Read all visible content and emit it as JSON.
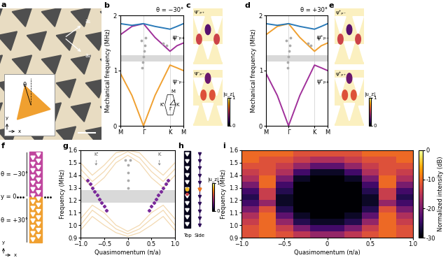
{
  "chart_data": [
    {
      "panel": "b",
      "type": "line",
      "title": "θ = −30°",
      "ylabel": "Mechanical frequency (MHz)",
      "x": [
        0,
        0.5,
        1,
        1.5,
        2.15,
        2.45,
        2.73
      ],
      "series": [
        {
          "color": "#f0a030",
          "values": [
            0.95,
            0.55,
            0,
            0.55,
            1.1,
            1.05,
            1.0
          ]
        },
        {
          "color": "#a0309a",
          "values": [
            1.65,
            1.8,
            1.85,
            1.6,
            1.35,
            1.45,
            1.5
          ]
        },
        {
          "color": "#2a7ab8",
          "values": [
            1.85,
            1.82,
            1.85,
            1.8,
            1.75,
            1.8,
            1.85
          ]
        }
      ],
      "points": {
        "color": "#aaaaaa",
        "x": [
          0.95,
          0.97,
          1.0,
          1.03,
          1.05,
          0.9,
          1.1,
          1.85,
          2.0,
          2.3
        ],
        "y": [
          1.05,
          1.15,
          1.25,
          1.35,
          1.45,
          1.55,
          1.6,
          1.5,
          1.45,
          1.6
        ]
      },
      "band_gap": [
        1.17,
        1.28
      ],
      "xlim": [
        0,
        2.73
      ],
      "xticks": [
        {
          "value": 0,
          "label": "M"
        },
        {
          "value": 1,
          "label": "Γ"
        },
        {
          "value": 2.15,
          "label": "K"
        },
        {
          "value": 2.73,
          "label": "M"
        }
      ],
      "ylim": [
        0,
        2
      ],
      "yticks": [
        0,
        1,
        2
      ],
      "annotations": [
        "ψ⁻ₚ₊",
        "ψ⁻ₚ₋"
      ],
      "inset_labels": [
        "K'",
        "M",
        "K",
        "Γ"
      ]
    },
    {
      "panel": "d",
      "type": "line",
      "title": "θ = +30°",
      "ylabel": "Mechanical frequency (MHz)",
      "x": [
        0,
        0.5,
        1,
        1.5,
        2.15,
        2.45,
        2.73
      ],
      "series": [
        {
          "color": "#a0309a",
          "values": [
            0.95,
            0.55,
            0,
            0.55,
            1.1,
            1.05,
            1.0
          ]
        },
        {
          "color": "#f0a030",
          "values": [
            1.65,
            1.8,
            1.85,
            1.6,
            1.35,
            1.45,
            1.5
          ]
        },
        {
          "color": "#2a7ab8",
          "values": [
            1.85,
            1.82,
            1.85,
            1.8,
            1.75,
            1.8,
            1.85
          ]
        }
      ],
      "points": {
        "color": "#aaaaaa",
        "x": [
          0.95,
          0.97,
          1.0,
          1.03,
          1.05,
          0.9,
          1.1,
          1.85,
          2.0,
          2.3
        ],
        "y": [
          1.05,
          1.15,
          1.25,
          1.35,
          1.45,
          1.55,
          1.6,
          1.5,
          1.45,
          1.6
        ]
      },
      "band_gap": [
        1.17,
        1.28
      ],
      "xlim": [
        0,
        2.73
      ],
      "xticks": [
        {
          "value": 0,
          "label": "M"
        },
        {
          "value": 1,
          "label": "Γ"
        },
        {
          "value": 2.15,
          "label": "K"
        },
        {
          "value": 2.73,
          "label": "M"
        }
      ],
      "ylim": [
        0,
        2
      ],
      "yticks": [
        0,
        1,
        2
      ],
      "annotations": [
        "ψ⁺ₚ₋",
        "ψ⁺ₚ₊"
      ]
    },
    {
      "panel": "g",
      "type": "line",
      "xlabel": "Quasimomentum (π/a)",
      "ylabel": "Frequency (MHz)",
      "x": [
        -1,
        -0.75,
        -0.5,
        -0.25,
        0,
        0.25,
        0.5,
        0.75,
        1
      ],
      "series": [
        {
          "color": "#f3d9b1",
          "values": [
            1.05,
            1.16,
            1.1,
            1.0,
            0.95,
            1.0,
            1.1,
            1.16,
            1.05
          ]
        },
        {
          "color": "#f3d9b1",
          "values": [
            1.0,
            1.12,
            1.05,
            0.97,
            0.93,
            0.97,
            1.05,
            1.12,
            1.0
          ]
        },
        {
          "color": "#f3d9b1",
          "values": [
            0.96,
            1.07,
            1.0,
            0.94,
            0.91,
            0.94,
            1.0,
            1.07,
            0.96
          ]
        },
        {
          "color": "#f3d9b1",
          "values": [
            1.4,
            1.3,
            1.38,
            1.5,
            1.56,
            1.5,
            1.38,
            1.3,
            1.4
          ]
        },
        {
          "color": "#f3d9b1",
          "values": [
            1.45,
            1.35,
            1.43,
            1.54,
            1.59,
            1.54,
            1.43,
            1.35,
            1.45
          ]
        },
        {
          "color": "#f3d9b1",
          "values": [
            1.5,
            1.4,
            1.48,
            1.58,
            1.6,
            1.58,
            1.48,
            1.4,
            1.5
          ]
        }
      ],
      "edge_states": [
        {
          "color": "#7a2a9a",
          "marker": "diamond",
          "x": [
            -0.85,
            -0.8,
            -0.75,
            -0.7,
            -0.65,
            -0.6,
            -0.55,
            -0.5,
            -0.45
          ],
          "y": [
            1.36,
            1.33,
            1.3,
            1.27,
            1.24,
            1.21,
            1.18,
            1.15,
            1.12
          ]
        },
        {
          "color": "#7a2a9a",
          "marker": "diamond",
          "x": [
            0.45,
            0.5,
            0.55,
            0.6,
            0.65,
            0.7,
            0.75,
            0.8,
            0.85
          ],
          "y": [
            1.12,
            1.15,
            1.18,
            1.21,
            1.24,
            1.27,
            1.3,
            1.33,
            1.36
          ]
        }
      ],
      "points": {
        "color": "#aaaaaa",
        "x": [
          0,
          0,
          0,
          0,
          -0.05,
          0.05
        ],
        "y": [
          1.3,
          1.36,
          1.42,
          1.48,
          1.52,
          1.52
        ]
      },
      "band_gap": [
        1.18,
        1.28
      ],
      "valleys": [
        {
          "label": "K'",
          "x": -0.67
        },
        {
          "label": "K",
          "x": 0.67
        }
      ],
      "xlim": [
        -1,
        1
      ],
      "xticks": [
        {
          "value": -1,
          "label": "−1.0"
        },
        {
          "value": -0.5,
          "label": "−0.5"
        },
        0,
        0.5,
        {
          "value": 1,
          "label": "1.0"
        }
      ],
      "ylim": [
        0.9,
        1.6
      ],
      "yticks": [
        0.9,
        {
          "value": 1,
          "label": "1.0"
        },
        1.1,
        1.2,
        1.3,
        1.4,
        1.5,
        1.6
      ]
    },
    {
      "panel": "i",
      "type": "heatmap",
      "xlabel": "Quasimomentum (π/a)",
      "ylabel": "Frequency (MHz)",
      "x": [
        -0.9,
        -0.7,
        -0.5,
        -0.3,
        -0.1,
        0.1,
        0.3,
        0.5,
        0.7,
        0.9
      ],
      "y": [
        0.925,
        0.975,
        1.025,
        1.075,
        1.125,
        1.175,
        1.225,
        1.275,
        1.325,
        1.375,
        1.425,
        1.475,
        1.525,
        1.575
      ],
      "z": [
        [
          -12,
          -10,
          -12,
          -15,
          -18,
          -18,
          -15,
          -12,
          -10,
          -12
        ],
        [
          -12,
          -10,
          -14,
          -20,
          -24,
          -24,
          -20,
          -14,
          -10,
          -12
        ],
        [
          -14,
          -10,
          -18,
          -26,
          -28,
          -28,
          -26,
          -18,
          -10,
          -14
        ],
        [
          -16,
          -10,
          -22,
          -28,
          -30,
          -30,
          -28,
          -22,
          -10,
          -16
        ],
        [
          -20,
          -12,
          -26,
          -30,
          -30,
          -30,
          -30,
          -26,
          -12,
          -20
        ],
        [
          -24,
          -18,
          -28,
          -30,
          -30,
          -30,
          -30,
          -28,
          -18,
          -24
        ],
        [
          -26,
          -14,
          -28,
          -30,
          -30,
          -30,
          -30,
          -28,
          -14,
          -26
        ],
        [
          -24,
          -14,
          -26,
          -30,
          -30,
          -30,
          -30,
          -26,
          -14,
          -24
        ],
        [
          -20,
          -10,
          -24,
          -30,
          -30,
          -30,
          -30,
          -24,
          -10,
          -20
        ],
        [
          -16,
          -10,
          -20,
          -28,
          -30,
          -30,
          -28,
          -20,
          -10,
          -16
        ],
        [
          -14,
          -12,
          -16,
          -24,
          -28,
          -28,
          -24,
          -16,
          -12,
          -14
        ],
        [
          -12,
          -12,
          -14,
          -18,
          -22,
          -22,
          -18,
          -14,
          -12,
          -12
        ],
        [
          -10,
          -12,
          -12,
          -14,
          -16,
          -16,
          -14,
          -12,
          -12,
          -10
        ],
        [
          -10,
          -10,
          -10,
          -12,
          -12,
          -12,
          -12,
          -10,
          -10,
          -10
        ]
      ],
      "xlim": [
        -1,
        1
      ],
      "xticks": [
        {
          "value": -1,
          "label": "−1.0"
        },
        {
          "value": -0.5,
          "label": "−0.5"
        },
        0,
        0.5,
        {
          "value": 1,
          "label": "1.0"
        }
      ],
      "ylim": [
        0.9,
        1.6
      ],
      "yticks": [
        0.9,
        {
          "value": 1,
          "label": "1.0"
        },
        1.1,
        1.2,
        1.3,
        1.4,
        1.5,
        1.6
      ],
      "colorbar": {
        "label": "Normalized intensity (dB)",
        "lim": [
          -30,
          0
        ],
        "ticks": [
          0,
          -10,
          -20,
          -30
        ]
      }
    }
  ],
  "diagrams": {
    "a": {
      "panel": "a",
      "labels": [
        "a₁",
        "a₂"
      ],
      "inset_labels": [
        "θ",
        "x",
        "y"
      ]
    },
    "c": {
      "panel": "c",
      "labels": [
        "ψ⁻ₚ₊",
        "ψ⁻ₚ₋"
      ],
      "colorbar": {
        "label": "|u_z|",
        "ticks": [
          0,
          1
        ]
      }
    },
    "e": {
      "panel": "e",
      "labels": [
        "ψ⁺ₚ₋",
        "ψ⁺ₚ₊"
      ],
      "colorbar": {
        "label": "|u_z|",
        "ticks": [
          0,
          1
        ]
      }
    },
    "f": {
      "panel": "f",
      "labels": [
        "θ = −30°",
        "y = 0",
        "θ = +30°"
      ],
      "axes_labels": [
        "x",
        "y"
      ]
    },
    "h": {
      "panel": "h",
      "labels": [
        "Top",
        "Side"
      ],
      "colorbar": {
        "label": "|u_z|",
        "ticks": [
          0,
          1
        ]
      }
    }
  }
}
